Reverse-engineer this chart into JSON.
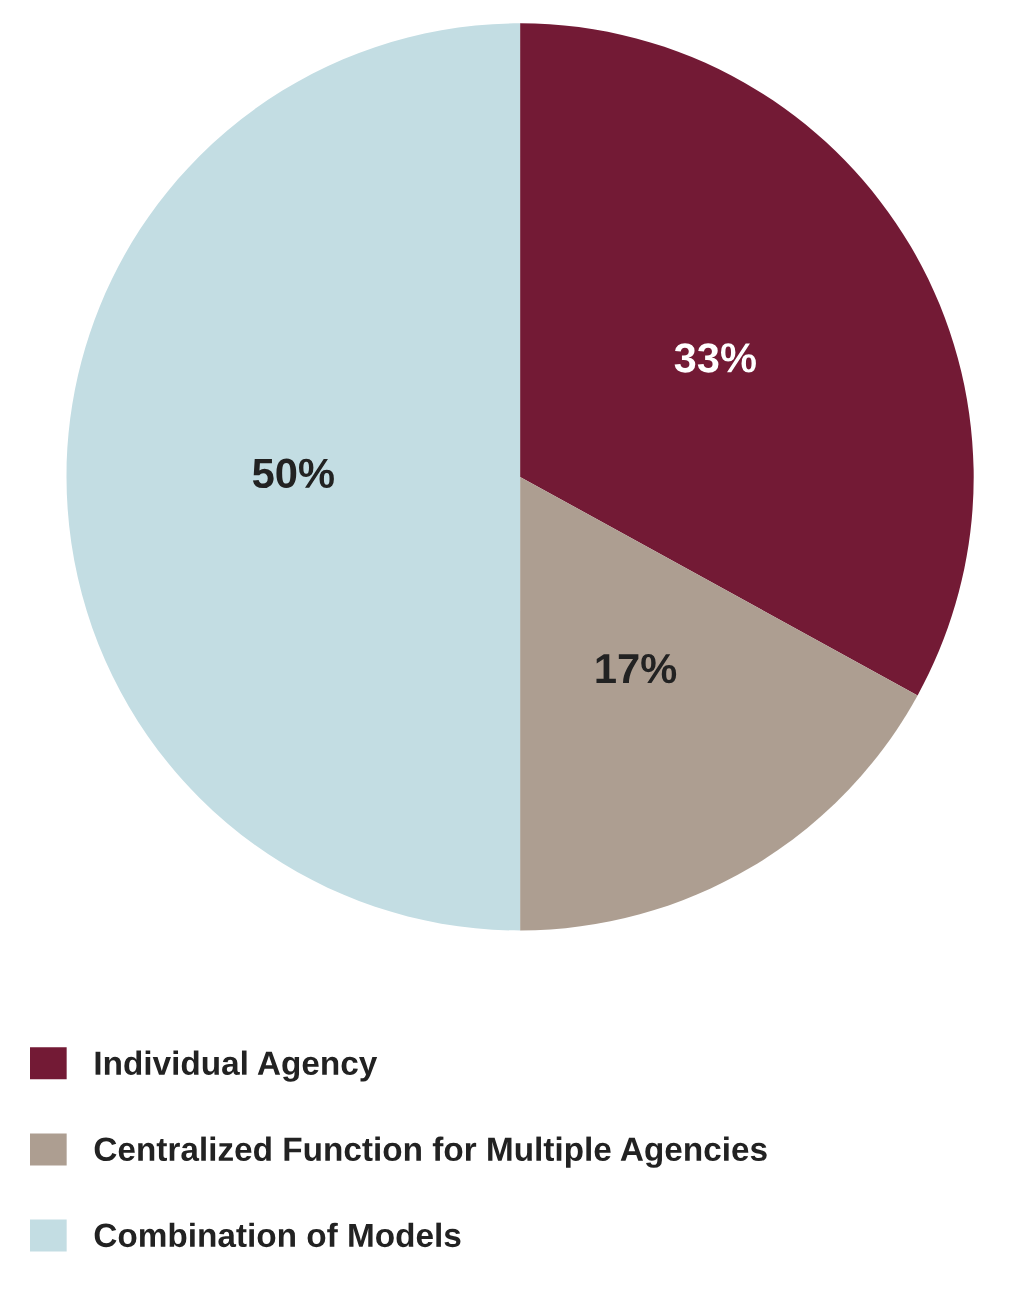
{
  "chart_data": {
    "type": "pie",
    "categories": [
      "Individual Agency",
      "Centralized Function for Multiple Agencies",
      "Combination of Models"
    ],
    "values": [
      33,
      17,
      50
    ],
    "colors": [
      "#731a35",
      "#ad9e91",
      "#c3dde3"
    ],
    "value_labels": [
      "33%",
      "17%",
      "50%"
    ],
    "legend": "bottom"
  }
}
